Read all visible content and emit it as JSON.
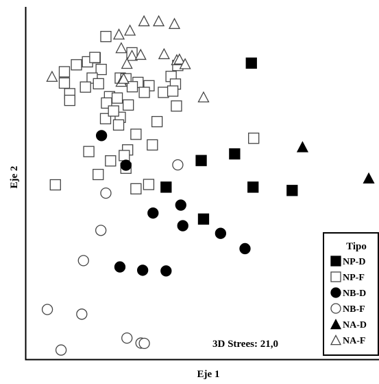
{
  "chart_data": {
    "type": "scatter",
    "title": "",
    "xlabel": "Eje 1",
    "ylabel": "Eje 2",
    "xlim": [
      0,
      100
    ],
    "ylim": [
      0,
      100
    ],
    "grid": false,
    "legend_position": "bottom-right",
    "legend_title": "Tipo",
    "annotation": "3D Strees: 21,0",
    "series": [
      {
        "name": "NP-D",
        "marker": "square",
        "filled": true,
        "points": [
          [
            64.5,
            86.8
          ],
          [
            59.5,
            59.5
          ],
          [
            49.5,
            57.5
          ],
          [
            39.0,
            49.5
          ],
          [
            65.0,
            49.5
          ],
          [
            76.7,
            48.5
          ],
          [
            50.2,
            39.9
          ]
        ]
      },
      {
        "name": "NP-F",
        "marker": "square",
        "filled": true,
        "points": [
          [
            21.0,
            94.8
          ],
          [
            17.8,
            88.4
          ],
          [
            15.5,
            87.2
          ],
          [
            12.2,
            86.3
          ],
          [
            28.8,
            89.9
          ],
          [
            19.6,
            84.9
          ],
          [
            16.9,
            82.3
          ],
          [
            25.3,
            82.3
          ],
          [
            27.0,
            82.1
          ],
          [
            30.6,
            81.0
          ],
          [
            18.8,
            80.6
          ],
          [
            33.9,
            80.0
          ],
          [
            40.5,
            82.8
          ],
          [
            41.8,
            80.5
          ],
          [
            42.5,
            86.1
          ],
          [
            8.6,
            80.8
          ],
          [
            14.9,
            79.6
          ],
          [
            28.9,
            79.7
          ],
          [
            32.5,
            78.0
          ],
          [
            10.2,
            77.6
          ],
          [
            10.2,
            75.6
          ],
          [
            22.1,
            76.7
          ],
          [
            24.4,
            76.3
          ],
          [
            21.2,
            74.8
          ],
          [
            27.7,
            74.2
          ],
          [
            25.3,
            70.5
          ],
          [
            20.9,
            70.1
          ],
          [
            23.3,
            72.4
          ],
          [
            24.8,
            68.2
          ],
          [
            42.1,
            73.9
          ],
          [
            38.2,
            78.0
          ],
          [
            36.3,
            69.2
          ],
          [
            27.5,
            60.7
          ],
          [
            30.0,
            65.4
          ],
          [
            34.9,
            62.2
          ],
          [
            26.5,
            59.0
          ],
          [
            27.0,
            55.2
          ],
          [
            22.4,
            57.4
          ],
          [
            18.7,
            53.3
          ],
          [
            41.0,
            78.4
          ],
          [
            15.9,
            60.2
          ],
          [
            5.9,
            50.2
          ],
          [
            33.8,
            50.3
          ],
          [
            30.0,
            49.0
          ],
          [
            65.2,
            64.2
          ],
          [
            8.6,
            84.2
          ],
          [
            17.7,
            88.5
          ]
        ]
      },
      {
        "name": "NB-D",
        "marker": "circle",
        "filled": true,
        "points": [
          [
            19.7,
            65.0
          ],
          [
            27.0,
            56.1
          ],
          [
            35.1,
            41.7
          ],
          [
            43.4,
            44.1
          ],
          [
            44.0,
            37.9
          ],
          [
            55.3,
            35.6
          ],
          [
            62.6,
            31.0
          ],
          [
            25.2,
            25.5
          ],
          [
            32.0,
            24.5
          ],
          [
            39.0,
            24.3
          ]
        ]
      },
      {
        "name": "NB-F",
        "marker": "circle",
        "filled": false,
        "points": [
          [
            42.5,
            56.2
          ],
          [
            21.0,
            47.7
          ],
          [
            19.5,
            36.5
          ],
          [
            14.3,
            27.4
          ],
          [
            3.5,
            12.7
          ],
          [
            13.8,
            11.3
          ],
          [
            27.3,
            4.1
          ],
          [
            31.5,
            2.6
          ],
          [
            32.5,
            2.5
          ],
          [
            7.6,
            0.5
          ]
        ]
      },
      {
        "name": "NA-D",
        "marker": "triangle",
        "filled": true,
        "points": [
          [
            79.8,
            61.6
          ],
          [
            99.6,
            52.2
          ]
        ]
      },
      {
        "name": "NA-F",
        "marker": "triangle",
        "filled": false,
        "points": [
          [
            32.4,
            99.5
          ],
          [
            36.8,
            99.5
          ],
          [
            41.5,
            98.7
          ],
          [
            24.9,
            95.5
          ],
          [
            28.2,
            96.7
          ],
          [
            25.6,
            91.4
          ],
          [
            28.8,
            89.1
          ],
          [
            31.4,
            89.4
          ],
          [
            38.4,
            89.6
          ],
          [
            42.2,
            87.8
          ],
          [
            43.0,
            88.0
          ],
          [
            4.9,
            82.8
          ],
          [
            25.6,
            81.3
          ],
          [
            27.3,
            86.7
          ],
          [
            44.7,
            86.6
          ],
          [
            26.3,
            82.2
          ],
          [
            50.2,
            76.6
          ]
        ]
      }
    ]
  },
  "legend": {
    "title": "Tipo",
    "items": [
      "NP-D",
      "NP-F",
      "NB-D",
      "NB-F",
      "NA-D",
      "NA-F"
    ]
  }
}
